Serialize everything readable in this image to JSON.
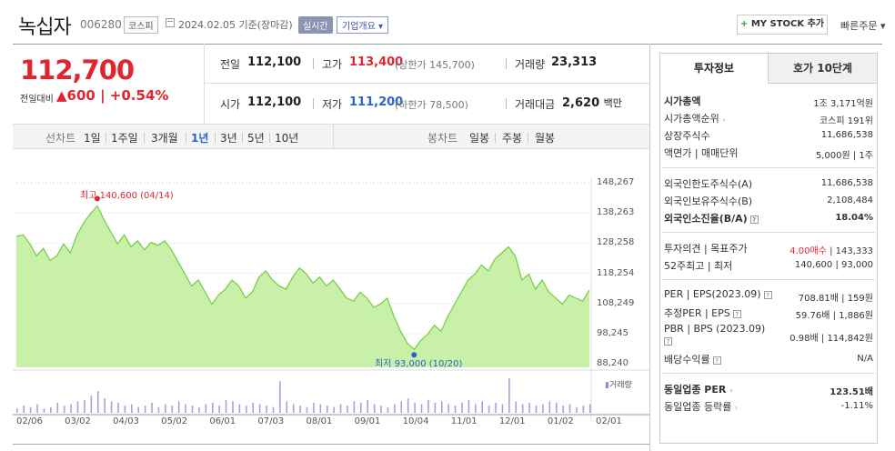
{
  "header": {
    "name": "녹십자",
    "code": "006280",
    "market": "코스피",
    "date": "2024.02.05 기준(장마감)",
    "realtime": "실시간",
    "corp_overview": "기업개요",
    "my_stock": "MY STOCK 추가",
    "quick_order": "빠른주문"
  },
  "quote": {
    "price": "112,700",
    "change_label": "전일대비",
    "change": "▲600",
    "change_pct": "+0.54%",
    "prev_close_label": "전일",
    "prev_close": "112,100",
    "high_label": "고가",
    "high": "113,400",
    "upper_limit": "(상한가 145,700)",
    "volume_label": "거래량",
    "volume": "23,313",
    "open_label": "시가",
    "open": "112,100",
    "low_label": "저가",
    "low": "111,200",
    "lower_limit": "(하한가 78,500)",
    "value_label": "거래대금",
    "value": "2,620",
    "value_unit": "백만"
  },
  "toolbar": {
    "line_chart_label": "선차트",
    "periods": [
      "1일",
      "1주일",
      "3개월",
      "1년",
      "3년",
      "5년",
      "10년"
    ],
    "active_period": "1년",
    "candle_label": "봉차트",
    "candle_periods": [
      "일봉",
      "주봉",
      "월봉"
    ]
  },
  "chart_data": {
    "type": "area",
    "y_ticks": [
      "148,267",
      "138,263",
      "128,258",
      "118,254",
      "108,249",
      "98,245",
      "88,240"
    ],
    "ylim": [
      88240,
      148267
    ],
    "x_ticks": [
      "02/06",
      "03/02",
      "04/03",
      "05/02",
      "06/01",
      "07/03",
      "08/01",
      "09/01",
      "10/04",
      "11/01",
      "12/01",
      "01/02",
      "02/01"
    ],
    "series": [
      {
        "values": [
          130500,
          131000,
          128000,
          124000,
          126500,
          122500,
          124000,
          128000,
          125000,
          131000,
          135000,
          138000,
          140600,
          136000,
          132000,
          128000,
          131000,
          127000,
          129000,
          126000,
          128500,
          127500,
          129000,
          126000,
          122000,
          118000,
          114000,
          116000,
          112000,
          108000,
          111000,
          113000,
          116000,
          114000,
          110000,
          112000,
          117000,
          119000,
          116000,
          114000,
          113000,
          117000,
          120000,
          118000,
          115000,
          117000,
          114000,
          116000,
          113000,
          110000,
          109000,
          112000,
          110000,
          107000,
          108000,
          110000,
          104000,
          99000,
          95000,
          93000,
          96000,
          98000,
          101000,
          99000,
          104000,
          108000,
          112000,
          116000,
          118000,
          121000,
          119000,
          123000,
          125000,
          127000,
          124000,
          116000,
          118000,
          113000,
          116000,
          112000,
          110000,
          108000,
          111000,
          110000,
          109000,
          112700
        ]
      }
    ],
    "max_annotation": "최고 140,600 (04/14)",
    "min_annotation": "최저 93,000 (10/20)",
    "volume_label": "거래량",
    "volume": [
      3,
      5,
      4,
      6,
      3,
      4,
      7,
      5,
      6,
      8,
      9,
      12,
      15,
      10,
      8,
      7,
      5,
      6,
      4,
      5,
      7,
      4,
      6,
      5,
      8,
      6,
      5,
      4,
      6,
      7,
      5,
      9,
      8,
      6,
      5,
      7,
      6,
      5,
      4,
      22,
      8,
      6,
      5,
      4,
      7,
      6,
      5,
      4,
      6,
      5,
      8,
      7,
      9,
      6,
      5,
      4,
      6,
      8,
      10,
      7,
      6,
      9,
      7,
      8,
      6,
      5,
      7,
      9,
      6,
      8,
      5,
      7,
      6,
      24,
      8,
      6,
      7,
      5,
      6,
      8,
      7,
      5,
      6,
      4,
      5,
      6
    ]
  },
  "invest": {
    "tab_info": "투자정보",
    "tab_orderbook": "호가 10단계",
    "rows1": [
      {
        "label": "시가총액",
        "value": "1조 3,171억원"
      },
      {
        "label": "시가총액순위",
        "value": "코스피 191위"
      },
      {
        "label": "상장주식수",
        "value": "11,686,538"
      },
      {
        "label": "액면가 | 매매단위",
        "value": "5,000원 | 1주"
      }
    ],
    "rows2": [
      {
        "label": "외국인한도주식수(A)",
        "value": "11,686,538"
      },
      {
        "label": "외국인보유주식수(B)",
        "value": "2,108,484"
      },
      {
        "label": "외국인소진율(B/A)",
        "value": "18.04%"
      }
    ],
    "rows3": [
      {
        "label": "투자의견 | 목표주가",
        "value_red": "4.00매수",
        "value": "| 143,333"
      },
      {
        "label": "52주최고 | 최저",
        "value": "140,600 | 93,000"
      }
    ],
    "rows4": [
      {
        "label": "PER | EPS(2023.09)",
        "value": "708.81배 | 159원"
      },
      {
        "label": "추정PER | EPS",
        "value": "59.76배 | 1,886원"
      },
      {
        "label": "PBR | BPS (2023.09)",
        "value": "0.98배 | 114,842원"
      },
      {
        "label": "배당수익률",
        "value": "N/A"
      }
    ],
    "rows5": [
      {
        "label": "동일업종 PER",
        "value": "123.51배"
      },
      {
        "label": "동일업종 등락률",
        "value": "-1.11%"
      }
    ],
    "colors": {
      "up": "#e2242f",
      "down": "#2a63c9",
      "area": "#c9f0a8",
      "line": "#6fcf3f"
    }
  }
}
